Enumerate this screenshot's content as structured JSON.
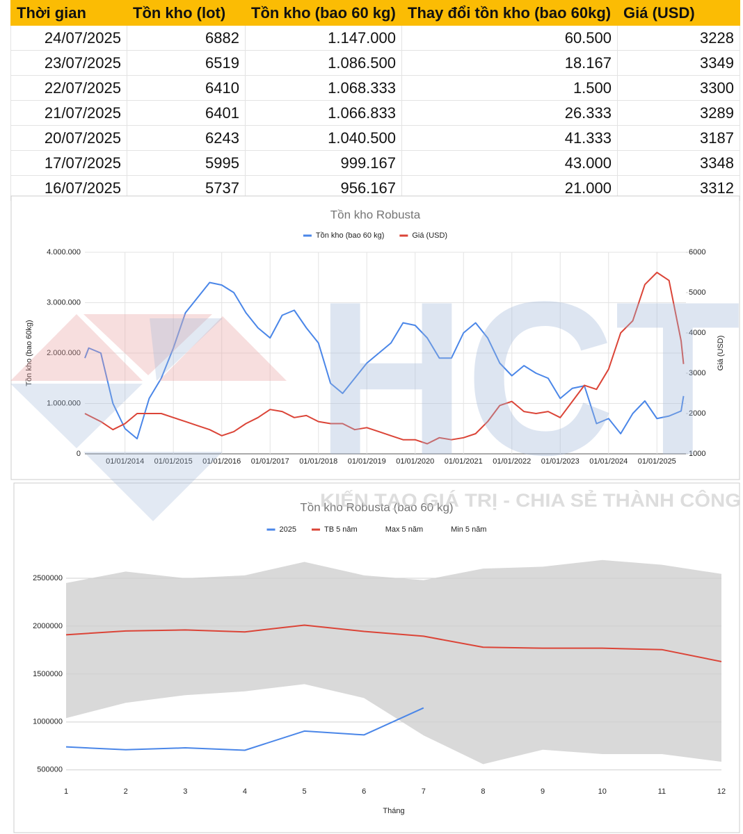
{
  "table": {
    "header": [
      "Thời gian",
      "Tồn kho (lot)",
      "Tồn kho (bao 60 kg)",
      "Thay đổi tồn kho (bao 60kg)",
      "Giá (USD)"
    ],
    "rows": [
      [
        "24/07/2025",
        "6882",
        "1.147.000",
        "60.500",
        "3228"
      ],
      [
        "23/07/2025",
        "6519",
        "1.086.500",
        "18.167",
        "3349"
      ],
      [
        "22/07/2025",
        "6410",
        "1.068.333",
        "1.500",
        "3300"
      ],
      [
        "21/07/2025",
        "6401",
        "1.066.833",
        "26.333",
        "3289"
      ],
      [
        "20/07/2025",
        "6243",
        "1.040.500",
        "41.333",
        "3187"
      ],
      [
        "17/07/2025",
        "5995",
        "999.167",
        "43.000",
        "3348"
      ],
      [
        "16/07/2025",
        "5737",
        "956.167",
        "21.000",
        "3312"
      ]
    ]
  },
  "watermark": {
    "logo": "HCT",
    "slogan": "KIẾN TẠO GIÁ TRỊ - CHIA SẺ THÀNH CÔNG"
  },
  "chart_data": [
    {
      "type": "line",
      "title": "Tồn kho Robusta",
      "y_label": "Tồn kho (bao 60kg)",
      "y2_label": "Giá (USD)",
      "legend": "top",
      "grid": true,
      "x": [
        2013.17,
        2013.25,
        2013.5,
        2013.75,
        2014,
        2014.25,
        2014.5,
        2014.75,
        2015,
        2015.25,
        2015.5,
        2015.75,
        2016,
        2016.25,
        2016.5,
        2016.75,
        2017,
        2017.25,
        2017.5,
        2017.75,
        2018,
        2018.25,
        2018.5,
        2018.75,
        2019,
        2019.25,
        2019.5,
        2019.75,
        2020,
        2020.25,
        2020.5,
        2020.75,
        2021,
        2021.25,
        2021.5,
        2021.75,
        2022,
        2022.25,
        2022.5,
        2022.75,
        2023,
        2023.25,
        2023.5,
        2023.75,
        2024,
        2024.25,
        2024.5,
        2024.75,
        2025,
        2025.25,
        2025.5,
        2025.55
      ],
      "xlim": [
        2013.17,
        2025.6
      ],
      "xticks": [
        {
          "value": 2014,
          "label": "01/01/2014"
        },
        {
          "value": 2015,
          "label": "01/01/2015"
        },
        {
          "value": 2016,
          "label": "01/01/2016"
        },
        {
          "value": 2017,
          "label": "01/01/2017"
        },
        {
          "value": 2018,
          "label": "01/01/2018"
        },
        {
          "value": 2019,
          "label": "01/01/2019"
        },
        {
          "value": 2020,
          "label": "01/01/2020"
        },
        {
          "value": 2021,
          "label": "01/01/2021"
        },
        {
          "value": 2022,
          "label": "01/01/2022"
        },
        {
          "value": 2023,
          "label": "01/01/2023"
        },
        {
          "value": 2024,
          "label": "01/01/2024"
        },
        {
          "value": 2025,
          "label": "01/01/2025"
        }
      ],
      "ylim": [
        0,
        4000000
      ],
      "yticks": [
        0,
        {
          "value": 1000000,
          "label": "1.000.000"
        },
        {
          "value": 2000000,
          "label": "2.000.000"
        },
        {
          "value": 3000000,
          "label": "3.000.000"
        },
        {
          "value": 4000000,
          "label": "4.000.000"
        }
      ],
      "y2lim": [
        1000,
        6000
      ],
      "y2ticks": [
        1000,
        2000,
        3000,
        4000,
        5000,
        6000
      ],
      "series": [
        {
          "name": "Tồn kho (bao 60 kg)",
          "color": "#4a86e8",
          "values": [
            1900000,
            2100000,
            2000000,
            1000000,
            500000,
            300000,
            1100000,
            1500000,
            2100000,
            2800000,
            3100000,
            3400000,
            3350000,
            3200000,
            2800000,
            2500000,
            2300000,
            2750000,
            2850000,
            2500000,
            2200000,
            1400000,
            1200000,
            1500000,
            1800000,
            2000000,
            2200000,
            2600000,
            2550000,
            2300000,
            1900000,
            1900000,
            2400000,
            2600000,
            2300000,
            1800000,
            1550000,
            1750000,
            1600000,
            1500000,
            1100000,
            1300000,
            1350000,
            600000,
            700000,
            400000,
            800000,
            1050000,
            700000,
            750000,
            850000,
            1147000
          ]
        },
        {
          "name": "Giá (USD)",
          "color": "#db4437",
          "axis": "y2",
          "values": [
            2000,
            1950,
            1800,
            1600,
            1750,
            2000,
            2000,
            2000,
            1900,
            1800,
            1700,
            1600,
            1450,
            1550,
            1750,
            1900,
            2100,
            2050,
            1900,
            1950,
            1800,
            1750,
            1750,
            1600,
            1650,
            1550,
            1450,
            1350,
            1350,
            1250,
            1400,
            1350,
            1400,
            1500,
            1800,
            2200,
            2300,
            2050,
            2000,
            2050,
            1900,
            2300,
            2700,
            2600,
            3100,
            4000,
            4300,
            5200,
            5500,
            5300,
            3800,
            3228
          ]
        }
      ]
    },
    {
      "type": "line",
      "title": "Tồn kho Robusta (bao 60 kg)",
      "x_label": "Tháng",
      "legend": "top",
      "grid": true,
      "x": [
        1,
        2,
        3,
        4,
        5,
        6,
        7,
        8,
        9,
        10,
        11,
        12
      ],
      "xlim": [
        1,
        12
      ],
      "xticks": [
        1,
        2,
        3,
        4,
        5,
        6,
        7,
        8,
        9,
        10,
        11,
        12
      ],
      "ylim": [
        375000,
        2750000
      ],
      "yticks": [
        500000,
        1000000,
        1500000,
        2000000,
        2500000
      ],
      "series": [
        {
          "name": "2025",
          "color": "#4a86e8",
          "values": [
            740000,
            710000,
            730000,
            705000,
            905000,
            865000,
            1147000,
            null,
            null,
            null,
            null,
            null
          ]
        },
        {
          "name": "TB 5 năm",
          "color": "#db4437",
          "values": [
            1910000,
            1950000,
            1960000,
            1940000,
            2010000,
            1945000,
            1895000,
            1780000,
            1770000,
            1770000,
            1755000,
            1630000
          ]
        },
        {
          "name": "Max 5 năm",
          "color": "#d9d9d9",
          "style": "area",
          "values": [
            2450000,
            2570000,
            2500000,
            2530000,
            2670000,
            2530000,
            2480000,
            2600000,
            2620000,
            2690000,
            2640000,
            2545000
          ]
        },
        {
          "name": "Min 5 năm",
          "color": "#ffffff",
          "style": "area",
          "values": [
            1040000,
            1200000,
            1280000,
            1320000,
            1395000,
            1250000,
            860000,
            560000,
            710000,
            665000,
            665000,
            585000
          ]
        }
      ]
    }
  ]
}
